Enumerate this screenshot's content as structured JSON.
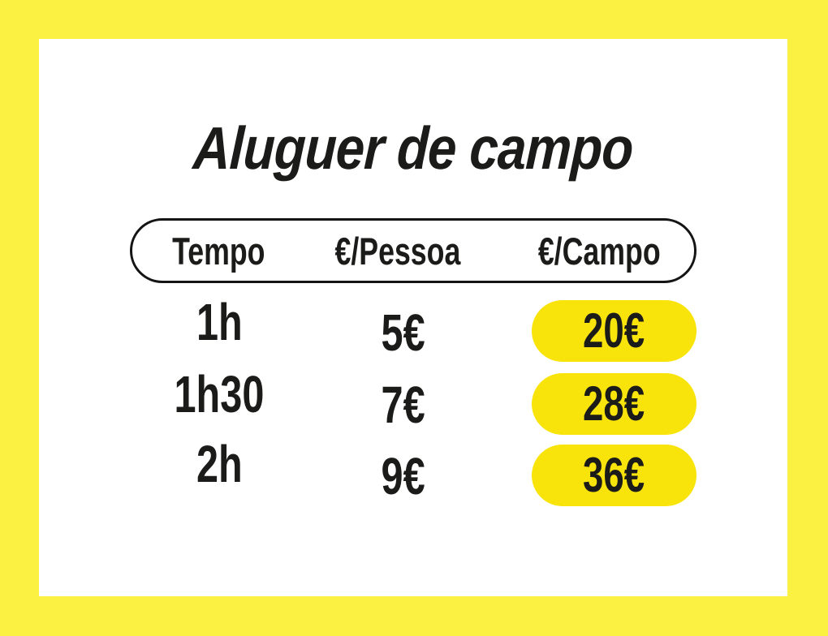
{
  "colors": {
    "frame_yellow": "#FBF142",
    "card_white": "#FFFFFF",
    "pill_yellow": "#F8E40A",
    "text_black": "#1B1B19",
    "header_border_black": "#141414"
  },
  "title": "Aluguer de campo",
  "table": {
    "headers": {
      "tempo": "Tempo",
      "per_person": "€/Pessoa",
      "per_field": "€/Campo"
    },
    "rows": [
      {
        "tempo": "1h",
        "per_person": "5€",
        "per_field": "20€"
      },
      {
        "tempo": "1h30",
        "per_person": "7€",
        "per_field": "28€"
      },
      {
        "tempo": "2h",
        "per_person": "9€",
        "per_field": "36€"
      }
    ]
  }
}
